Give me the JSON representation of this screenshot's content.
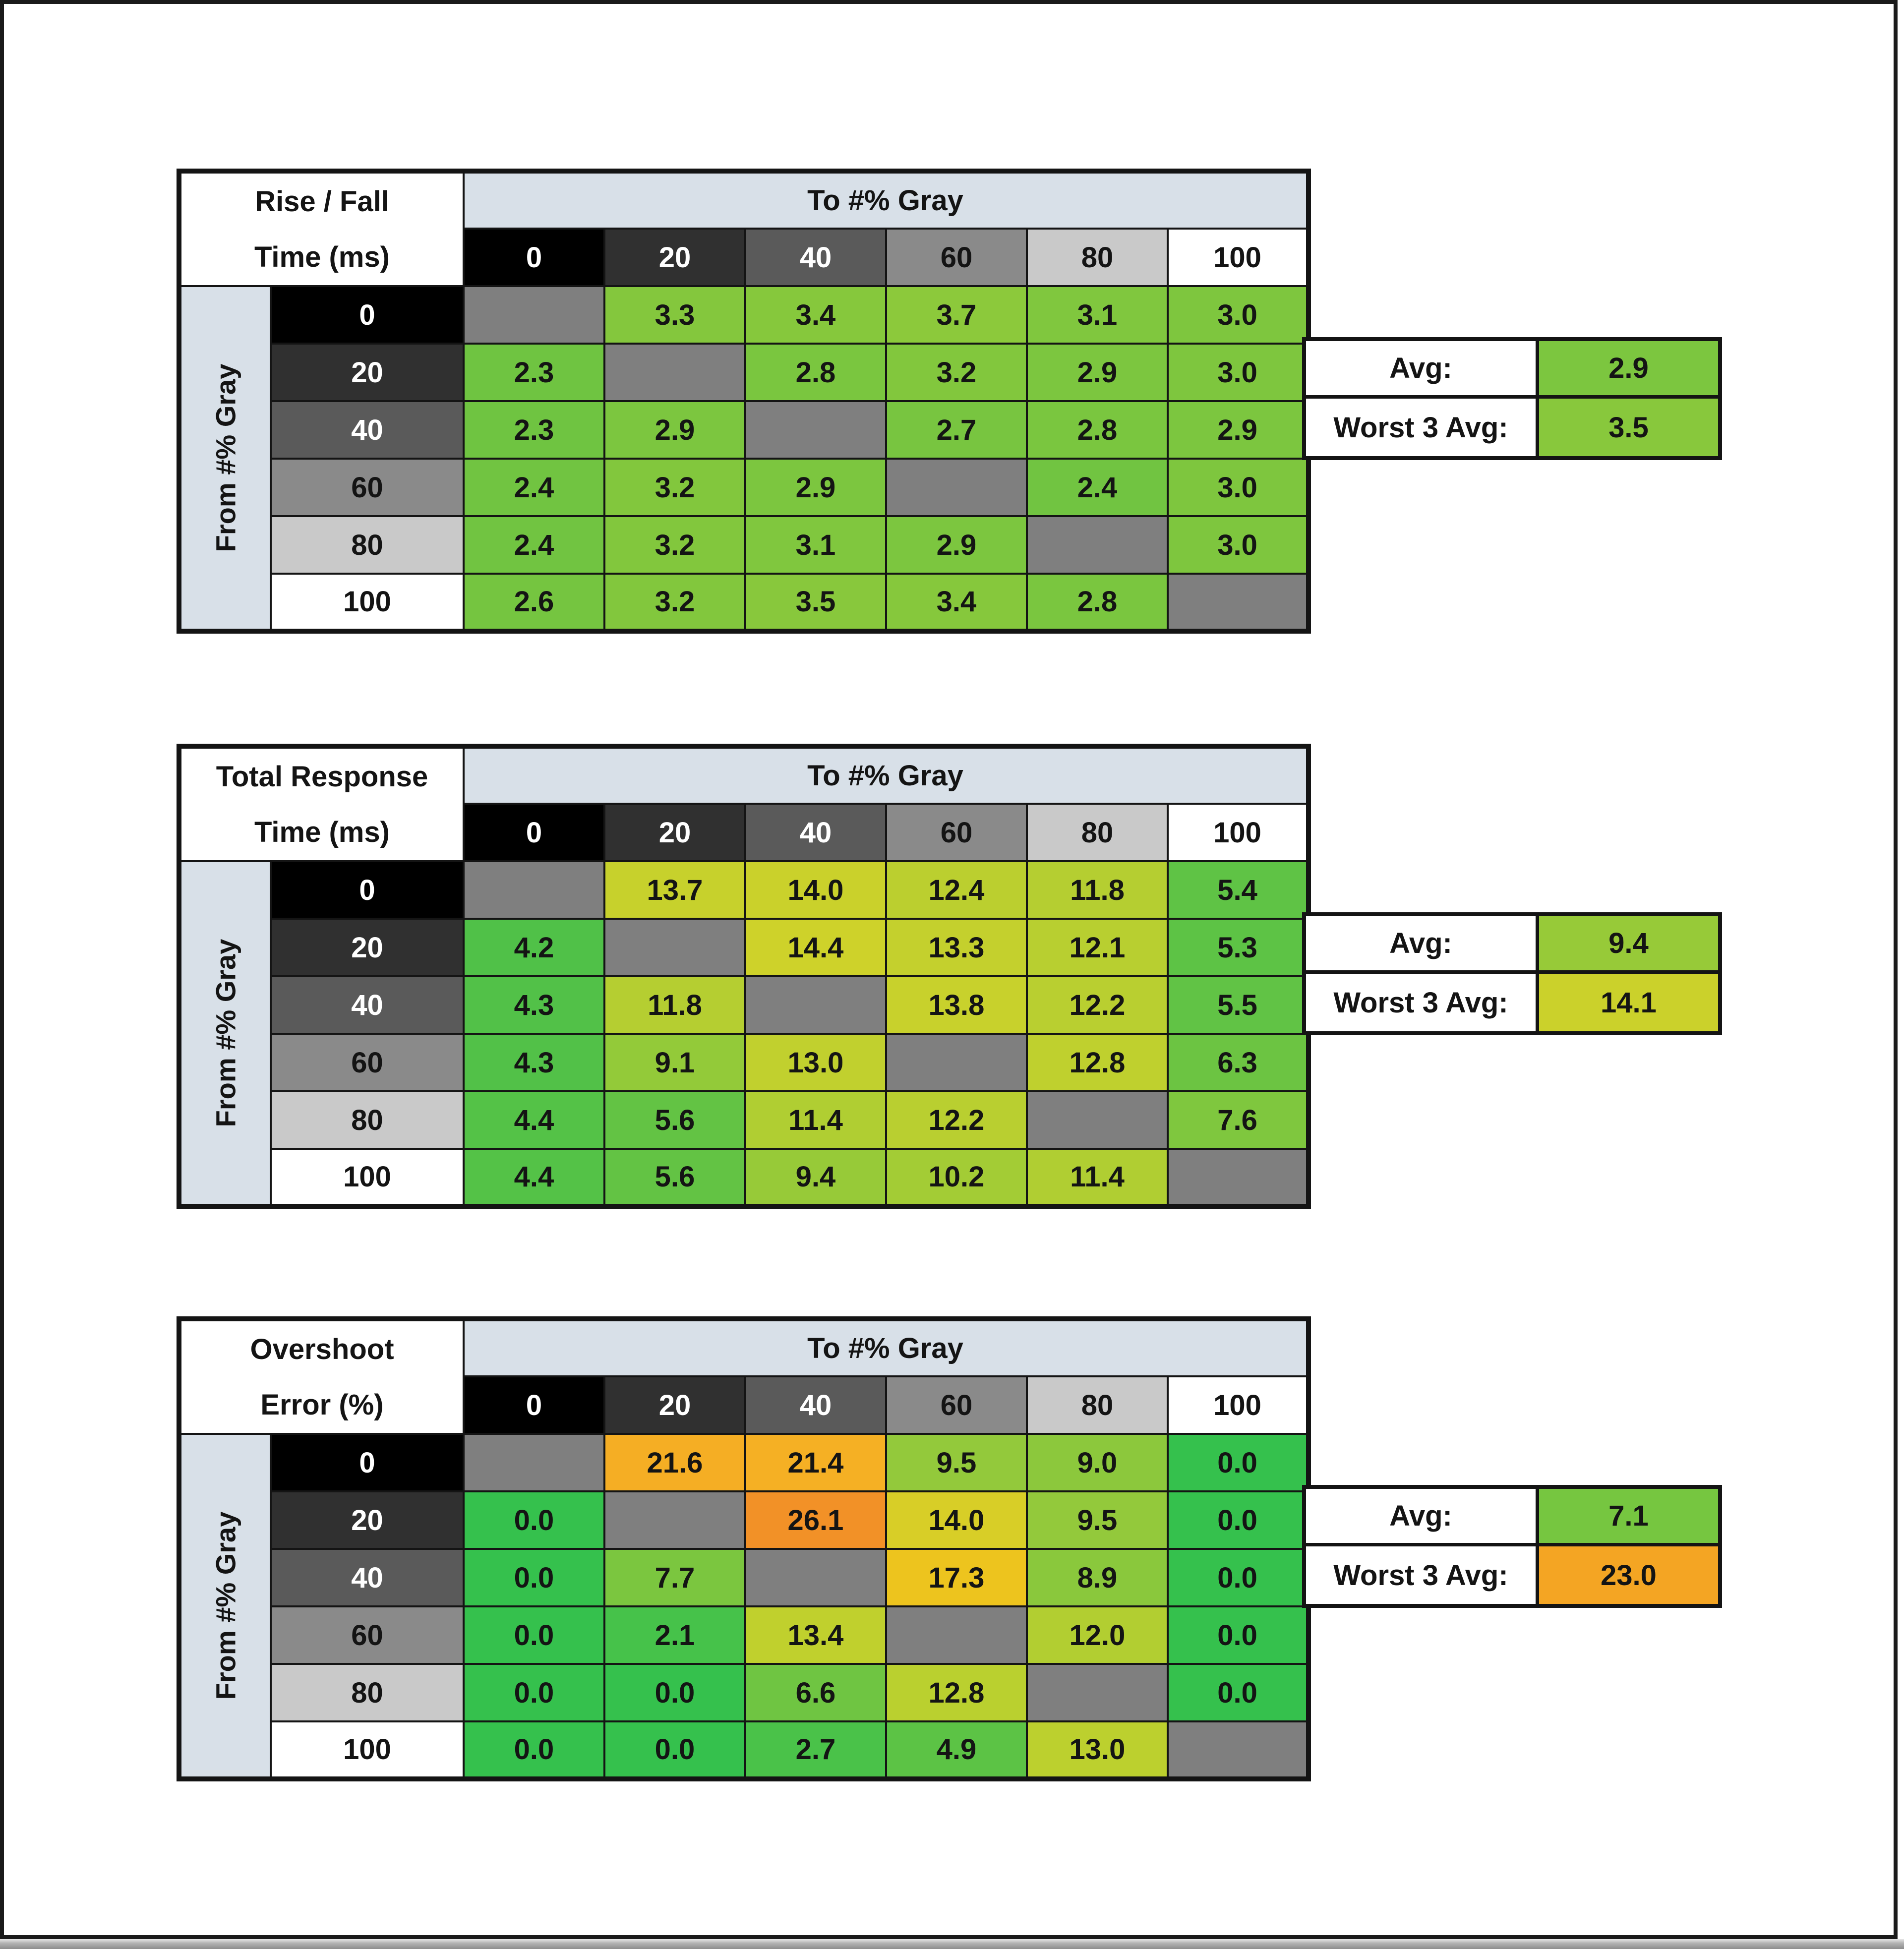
{
  "shared": {
    "col_header_title": "To #% Gray",
    "row_header_title": "From #% Gray",
    "avg_label": "Avg:",
    "worst3_label": "Worst 3 Avg:",
    "header_band_color": "#d8e0e8",
    "diagonal_cell_color": "#7f7f7f",
    "grid_border_color": "#141414",
    "page_background": "#ffffff",
    "frame_color": "#1a1a1a",
    "bottom_strip_color": "#9e9e9e",
    "level_colors": [
      {
        "level": "0",
        "bg": "#000000",
        "fg": "#ffffff"
      },
      {
        "level": "20",
        "bg": "#303030",
        "fg": "#ffffff"
      },
      {
        "level": "40",
        "bg": "#5a5a5a",
        "fg": "#ffffff"
      },
      {
        "level": "60",
        "bg": "#8a8a8a",
        "fg": "#141414"
      },
      {
        "level": "80",
        "bg": "#c9c9c9",
        "fg": "#141414"
      },
      {
        "level": "100",
        "bg": "#ffffff",
        "fg": "#141414"
      }
    ]
  },
  "chart_data": [
    {
      "type": "heatmap",
      "title": "Rise / Fall Time (ms)",
      "title_line1": "Rise / Fall",
      "title_line2": "Time (ms)",
      "xlabel": "To #% Gray",
      "ylabel": "From #% Gray",
      "x": [
        0,
        20,
        40,
        60,
        80,
        100
      ],
      "y": [
        0,
        20,
        40,
        60,
        80,
        100
      ],
      "values": [
        [
          null,
          3.3,
          3.4,
          3.7,
          3.1,
          3.0
        ],
        [
          2.3,
          null,
          2.8,
          3.2,
          2.9,
          3.0
        ],
        [
          2.3,
          2.9,
          null,
          2.7,
          2.8,
          2.9
        ],
        [
          2.4,
          3.2,
          2.9,
          null,
          2.4,
          3.0
        ],
        [
          2.4,
          3.2,
          3.1,
          2.9,
          null,
          3.0
        ],
        [
          2.6,
          3.2,
          3.5,
          3.4,
          2.8,
          null
        ]
      ],
      "cell_colors": [
        [
          null,
          "#84C73D",
          "#86C83C",
          "#8CC93B",
          "#80C73E",
          "#7EC63E"
        ],
        [
          "#6FC441",
          null,
          "#7AC63F",
          "#82C73D",
          "#7CC63F",
          "#7EC63E"
        ],
        [
          "#6FC441",
          "#7CC63F",
          null,
          "#78C540",
          "#7AC63F",
          "#7CC63F"
        ],
        [
          "#71C441",
          "#82C73D",
          "#7CC63F",
          null,
          "#71C441",
          "#7EC63E"
        ],
        [
          "#71C441",
          "#82C73D",
          "#80C73E",
          "#7CC63F",
          null,
          "#7EC63E"
        ],
        [
          "#75C540",
          "#82C73D",
          "#88C83C",
          "#86C83C",
          "#7AC63F",
          null
        ]
      ],
      "avg": 2.9,
      "avg_color": "#7CC63F",
      "worst3": 3.5,
      "worst3_color": "#88C83C"
    },
    {
      "type": "heatmap",
      "title": "Total Response Time (ms)",
      "title_line1": "Total Response",
      "title_line2": "Time (ms)",
      "xlabel": "To #% Gray",
      "ylabel": "From #% Gray",
      "x": [
        0,
        20,
        40,
        60,
        80,
        100
      ],
      "y": [
        0,
        20,
        40,
        60,
        80,
        100
      ],
      "values": [
        [
          null,
          13.7,
          14.0,
          12.4,
          11.8,
          5.4
        ],
        [
          4.2,
          null,
          14.4,
          13.3,
          12.1,
          5.3
        ],
        [
          4.3,
          11.8,
          null,
          13.8,
          12.2,
          5.5
        ],
        [
          4.3,
          9.1,
          13.0,
          null,
          12.8,
          6.3
        ],
        [
          4.4,
          5.6,
          11.4,
          12.2,
          null,
          7.6
        ],
        [
          4.4,
          5.6,
          9.4,
          10.2,
          11.4,
          null
        ]
      ],
      "cell_colors": [
        [
          null,
          "#C7D12C",
          "#CAD12B",
          "#BBCF2F",
          "#B5CE31",
          "#5FC345"
        ],
        [
          "#50C148",
          null,
          "#CED22A",
          "#C4D02D",
          "#B8CF30",
          "#5DC345"
        ],
        [
          "#52C148",
          "#B5CE31",
          null,
          "#C8D12C",
          "#B9CF30",
          "#61C345"
        ],
        [
          "#52C148",
          "#93CA39",
          "#C1D02E",
          null,
          "#BFD02E",
          "#6CC442"
        ],
        [
          "#54C247",
          "#63C344",
          "#B0CE32",
          "#B9CF30",
          null,
          "#7FC73E"
        ],
        [
          "#54C247",
          "#63C344",
          "#97CA38",
          "#A3CC35",
          "#B0CE32",
          null
        ]
      ],
      "avg": 9.4,
      "avg_color": "#97CA38",
      "worst3": 14.1,
      "worst3_color": "#CBD12B"
    },
    {
      "type": "heatmap",
      "title": "Overshoot Error (%)",
      "title_line1": "Overshoot",
      "title_line2": "Error (%)",
      "xlabel": "To #% Gray",
      "ylabel": "From #% Gray",
      "x": [
        0,
        20,
        40,
        60,
        80,
        100
      ],
      "y": [
        0,
        20,
        40,
        60,
        80,
        100
      ],
      "values": [
        [
          null,
          21.6,
          21.4,
          9.5,
          9.0,
          0.0
        ],
        [
          0.0,
          null,
          26.1,
          14.0,
          9.5,
          0.0
        ],
        [
          0.0,
          7.7,
          null,
          17.3,
          8.9,
          0.0
        ],
        [
          0.0,
          2.1,
          13.4,
          null,
          12.0,
          0.0
        ],
        [
          0.0,
          0.0,
          6.6,
          12.8,
          null,
          0.0
        ],
        [
          0.0,
          0.0,
          2.7,
          4.9,
          13.0,
          null
        ]
      ],
      "cell_colors": [
        [
          null,
          "#F5AE24",
          "#F5B024",
          "#93C93B",
          "#8CC83C",
          "#35C14D"
        ],
        [
          "#35C14D",
          null,
          "#F29127",
          "#D8CE27",
          "#93C93B",
          "#35C14D"
        ],
        [
          "#35C14D",
          "#7BC63F",
          null,
          "#EDC41E",
          "#8AC83C",
          "#35C14D"
        ],
        [
          "#35C14D",
          "#46C24A",
          "#C0D02D",
          null,
          "#B2CE31",
          "#35C14D"
        ],
        [
          "#35C14D",
          "#35C14D",
          "#6FC542",
          "#BAD02F",
          null,
          "#35C14D"
        ],
        [
          "#35C14D",
          "#35C14D",
          "#4AC249",
          "#5CC345",
          "#BCD02E",
          null
        ]
      ],
      "avg": 7.1,
      "avg_color": "#76C640",
      "worst3": 23.0,
      "worst3_color": "#F4A523"
    }
  ]
}
